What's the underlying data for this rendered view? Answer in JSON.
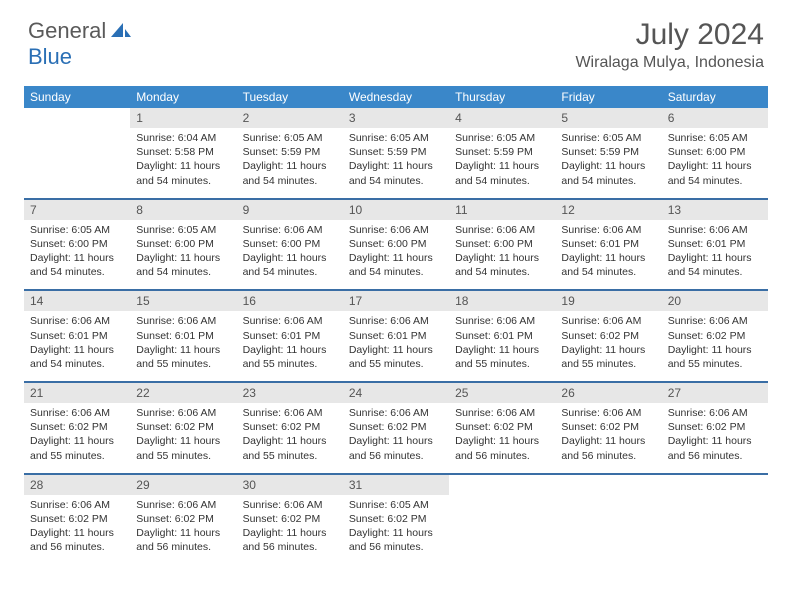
{
  "brand": {
    "part1": "General",
    "part2": "Blue"
  },
  "title": "July 2024",
  "location": "Wiralaga Mulya, Indonesia",
  "colors": {
    "header_bg": "#3a87c9",
    "header_text": "#ffffff",
    "daynum_bg": "#e7e7e7",
    "rule": "#3a6ea5",
    "body_text": "#333333",
    "title_text": "#555555",
    "brand_gray": "#5a5a5a",
    "brand_blue": "#2a6fb5",
    "page_bg": "#ffffff"
  },
  "day_names": [
    "Sunday",
    "Monday",
    "Tuesday",
    "Wednesday",
    "Thursday",
    "Friday",
    "Saturday"
  ],
  "fonts": {
    "title_size": 30,
    "location_size": 16,
    "head_size": 12,
    "daynum_size": 12,
    "cell_size": 10.5
  },
  "weeks": [
    [
      null,
      {
        "n": "1",
        "sr": "6:04 AM",
        "ss": "5:58 PM",
        "dl": "11 hours and 54 minutes."
      },
      {
        "n": "2",
        "sr": "6:05 AM",
        "ss": "5:59 PM",
        "dl": "11 hours and 54 minutes."
      },
      {
        "n": "3",
        "sr": "6:05 AM",
        "ss": "5:59 PM",
        "dl": "11 hours and 54 minutes."
      },
      {
        "n": "4",
        "sr": "6:05 AM",
        "ss": "5:59 PM",
        "dl": "11 hours and 54 minutes."
      },
      {
        "n": "5",
        "sr": "6:05 AM",
        "ss": "5:59 PM",
        "dl": "11 hours and 54 minutes."
      },
      {
        "n": "6",
        "sr": "6:05 AM",
        "ss": "6:00 PM",
        "dl": "11 hours and 54 minutes."
      }
    ],
    [
      {
        "n": "7",
        "sr": "6:05 AM",
        "ss": "6:00 PM",
        "dl": "11 hours and 54 minutes."
      },
      {
        "n": "8",
        "sr": "6:05 AM",
        "ss": "6:00 PM",
        "dl": "11 hours and 54 minutes."
      },
      {
        "n": "9",
        "sr": "6:06 AM",
        "ss": "6:00 PM",
        "dl": "11 hours and 54 minutes."
      },
      {
        "n": "10",
        "sr": "6:06 AM",
        "ss": "6:00 PM",
        "dl": "11 hours and 54 minutes."
      },
      {
        "n": "11",
        "sr": "6:06 AM",
        "ss": "6:00 PM",
        "dl": "11 hours and 54 minutes."
      },
      {
        "n": "12",
        "sr": "6:06 AM",
        "ss": "6:01 PM",
        "dl": "11 hours and 54 minutes."
      },
      {
        "n": "13",
        "sr": "6:06 AM",
        "ss": "6:01 PM",
        "dl": "11 hours and 54 minutes."
      }
    ],
    [
      {
        "n": "14",
        "sr": "6:06 AM",
        "ss": "6:01 PM",
        "dl": "11 hours and 54 minutes."
      },
      {
        "n": "15",
        "sr": "6:06 AM",
        "ss": "6:01 PM",
        "dl": "11 hours and 55 minutes."
      },
      {
        "n": "16",
        "sr": "6:06 AM",
        "ss": "6:01 PM",
        "dl": "11 hours and 55 minutes."
      },
      {
        "n": "17",
        "sr": "6:06 AM",
        "ss": "6:01 PM",
        "dl": "11 hours and 55 minutes."
      },
      {
        "n": "18",
        "sr": "6:06 AM",
        "ss": "6:01 PM",
        "dl": "11 hours and 55 minutes."
      },
      {
        "n": "19",
        "sr": "6:06 AM",
        "ss": "6:02 PM",
        "dl": "11 hours and 55 minutes."
      },
      {
        "n": "20",
        "sr": "6:06 AM",
        "ss": "6:02 PM",
        "dl": "11 hours and 55 minutes."
      }
    ],
    [
      {
        "n": "21",
        "sr": "6:06 AM",
        "ss": "6:02 PM",
        "dl": "11 hours and 55 minutes."
      },
      {
        "n": "22",
        "sr": "6:06 AM",
        "ss": "6:02 PM",
        "dl": "11 hours and 55 minutes."
      },
      {
        "n": "23",
        "sr": "6:06 AM",
        "ss": "6:02 PM",
        "dl": "11 hours and 55 minutes."
      },
      {
        "n": "24",
        "sr": "6:06 AM",
        "ss": "6:02 PM",
        "dl": "11 hours and 56 minutes."
      },
      {
        "n": "25",
        "sr": "6:06 AM",
        "ss": "6:02 PM",
        "dl": "11 hours and 56 minutes."
      },
      {
        "n": "26",
        "sr": "6:06 AM",
        "ss": "6:02 PM",
        "dl": "11 hours and 56 minutes."
      },
      {
        "n": "27",
        "sr": "6:06 AM",
        "ss": "6:02 PM",
        "dl": "11 hours and 56 minutes."
      }
    ],
    [
      {
        "n": "28",
        "sr": "6:06 AM",
        "ss": "6:02 PM",
        "dl": "11 hours and 56 minutes."
      },
      {
        "n": "29",
        "sr": "6:06 AM",
        "ss": "6:02 PM",
        "dl": "11 hours and 56 minutes."
      },
      {
        "n": "30",
        "sr": "6:06 AM",
        "ss": "6:02 PM",
        "dl": "11 hours and 56 minutes."
      },
      {
        "n": "31",
        "sr": "6:05 AM",
        "ss": "6:02 PM",
        "dl": "11 hours and 56 minutes."
      },
      null,
      null,
      null
    ]
  ],
  "labels": {
    "sunrise": "Sunrise:",
    "sunset": "Sunset:",
    "daylight": "Daylight:"
  }
}
